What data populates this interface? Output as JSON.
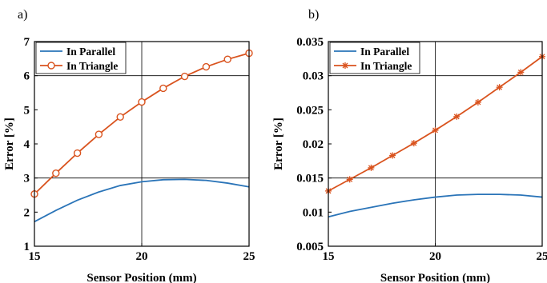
{
  "colors": {
    "parallel": "#2a74b8",
    "triangle": "#d9531e",
    "frame": "#000000",
    "grid": "#000000"
  },
  "chart_data": [
    {
      "panel_label": "a)",
      "type": "line",
      "xlabel": "Sensor Position (mm)",
      "ylabel": "Error [%]",
      "xlim": [
        15,
        25
      ],
      "ylim": [
        1,
        7
      ],
      "x_ticks": [
        15,
        20,
        25
      ],
      "y_ticks": [
        1,
        2,
        3,
        4,
        5,
        6,
        7
      ],
      "y_tick_labels": [
        "1",
        "2",
        "3",
        "4",
        "5",
        "6",
        "7"
      ],
      "grid": "major vertical at x=20 and horizontal at y=3, 6",
      "legend_position": "top-left",
      "series": [
        {
          "name": "In Parallel",
          "marker": "none",
          "x": [
            15,
            16,
            17,
            18,
            19,
            20,
            21,
            22,
            23,
            24,
            25
          ],
          "values": [
            1.72,
            2.05,
            2.35,
            2.59,
            2.78,
            2.89,
            2.95,
            2.96,
            2.93,
            2.85,
            2.74
          ]
        },
        {
          "name": "In Triangle",
          "marker": "circle",
          "x": [
            15,
            16,
            17,
            18,
            19,
            20,
            21,
            22,
            23,
            24,
            25
          ],
          "values": [
            2.53,
            3.14,
            3.73,
            4.28,
            4.79,
            5.23,
            5.63,
            5.98,
            6.26,
            6.48,
            6.66
          ]
        }
      ]
    },
    {
      "panel_label": "b)",
      "type": "line",
      "xlabel": "Sensor Position (mm)",
      "ylabel": "Error [%]",
      "xlim": [
        15,
        25
      ],
      "ylim": [
        0.005,
        0.035
      ],
      "x_ticks": [
        15,
        20,
        25
      ],
      "y_ticks": [
        0.005,
        0.01,
        0.015,
        0.02,
        0.025,
        0.03,
        0.035
      ],
      "y_tick_labels": [
        "0.005",
        "0.01",
        "0.015",
        "0.02",
        "0.025",
        "0.03",
        "0.035"
      ],
      "grid": "major vertical at x=20 and horizontal at y=0.015, 0.03",
      "legend_position": "top-left",
      "series": [
        {
          "name": "In Parallel",
          "marker": "none",
          "x": [
            15,
            16,
            17,
            18,
            19,
            20,
            21,
            22,
            23,
            24,
            25
          ],
          "values": [
            0.0093,
            0.0101,
            0.0107,
            0.0113,
            0.0118,
            0.0122,
            0.0125,
            0.0126,
            0.0126,
            0.0125,
            0.0122
          ]
        },
        {
          "name": "In Triangle",
          "marker": "asterisk",
          "x": [
            15,
            16,
            17,
            18,
            19,
            20,
            21,
            22,
            23,
            24,
            25
          ],
          "values": [
            0.0131,
            0.0148,
            0.0165,
            0.0183,
            0.0201,
            0.022,
            0.024,
            0.0261,
            0.0283,
            0.0305,
            0.0328
          ]
        }
      ]
    }
  ]
}
